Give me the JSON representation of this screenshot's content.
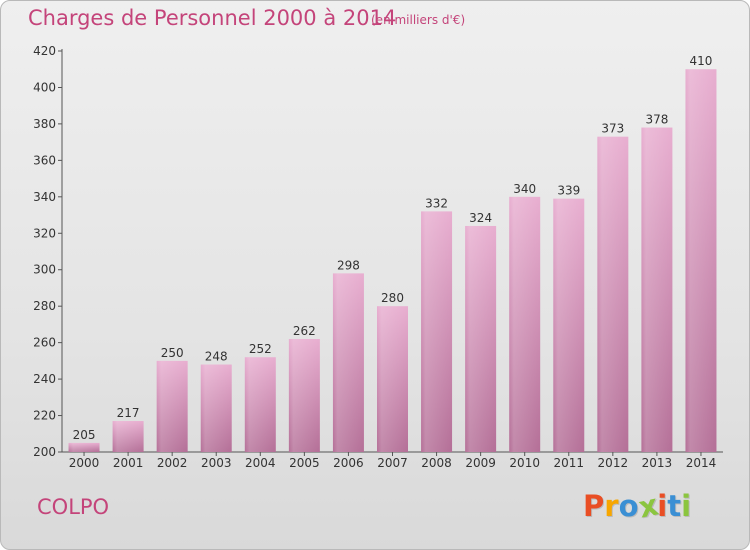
{
  "header": {
    "title": "Charges de Personnel 2000 à 2014",
    "subtitle": "(en milliers d'€)"
  },
  "footer": {
    "commune": "COLPO",
    "logo_text": "Proxiti",
    "logo_letters": [
      "P",
      "r",
      "o",
      "x",
      "i",
      "t",
      "i"
    ],
    "logo_colors": [
      "#e94e24",
      "#f7a600",
      "#3a8fd4",
      "#8bc53f",
      "#e94e24",
      "#3a8fd4",
      "#8bc53f"
    ]
  },
  "chart_data": {
    "type": "bar",
    "title": "Charges de Personnel 2000 à 2014",
    "subtitle": "(en milliers d'€)",
    "xlabel": "",
    "ylabel": "",
    "categories": [
      "2000",
      "2001",
      "2002",
      "2003",
      "2004",
      "2005",
      "2006",
      "2007",
      "2008",
      "2009",
      "2010",
      "2011",
      "2012",
      "2013",
      "2014"
    ],
    "values": [
      205,
      217,
      250,
      248,
      252,
      262,
      298,
      280,
      332,
      324,
      340,
      339,
      373,
      378,
      410
    ],
    "ylim": [
      200,
      420
    ],
    "yticks": [
      200,
      220,
      240,
      260,
      280,
      300,
      320,
      340,
      360,
      380,
      400,
      420
    ],
    "grid": false,
    "bar_color": "#d37fae",
    "bar_color_light": "#e7a9cb",
    "text_color": "#c4447a"
  }
}
